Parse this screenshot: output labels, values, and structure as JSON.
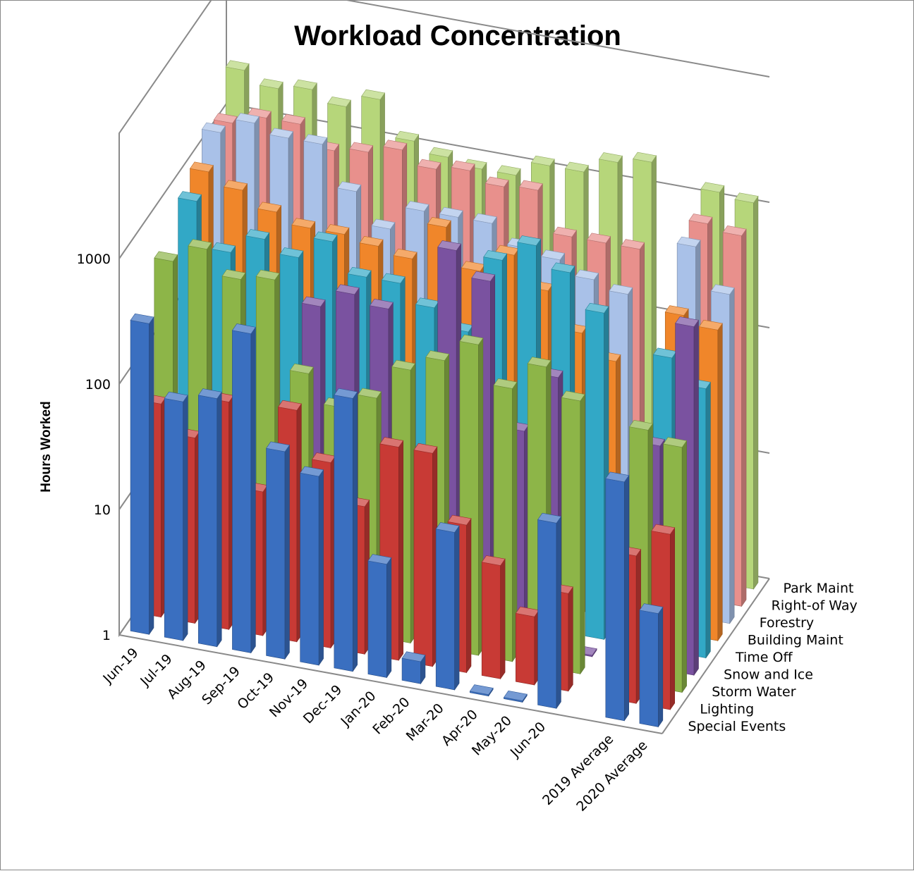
{
  "chart_data": {
    "type": "bar",
    "title": "Workload Concentration",
    "ylabel": "Hours Worked",
    "yscale": "log",
    "ylim": [
      1,
      10000
    ],
    "yticks": [
      "1",
      "10",
      "100",
      "1000"
    ],
    "categories": [
      "Jun-19",
      "Jul-19",
      "Aug-19",
      "Sep-19",
      "Oct-19",
      "Nov-19",
      "Dec-19",
      "Jan-20",
      "Feb-20",
      "Mar-20",
      "Apr-20",
      "May-20",
      "Jun-20",
      "",
      "2019 Average",
      "2020 Average"
    ],
    "series": [
      {
        "name": "Special Events",
        "color": "#3a6fc0",
        "values": [
          300,
          80,
          95,
          350,
          45,
          32,
          150,
          8,
          1.5,
          18,
          1,
          1,
          30,
          null,
          80,
          8
        ]
      },
      {
        "name": "Lighting",
        "color": "#c83a35",
        "values": [
          50,
          30,
          65,
          14,
          70,
          30,
          15,
          50,
          50,
          15,
          8,
          3.5,
          6,
          null,
          15,
          25
        ]
      },
      {
        "name": "Storm Water",
        "color": "#8db548",
        "values": [
          500,
          700,
          450,
          500,
          100,
          60,
          80,
          150,
          200,
          300,
          150,
          250,
          150,
          null,
          110,
          90
        ]
      },
      {
        "name": "Snow and Ice",
        "color": "#7a52a0",
        "values": [
          null,
          null,
          null,
          null,
          250,
          350,
          300,
          null,
          1100,
          700,
          50,
          150,
          1,
          null,
          60,
          600
        ]
      },
      {
        "name": "Time Off",
        "color": "#32a8c6",
        "values": [
          800,
          350,
          500,
          400,
          600,
          350,
          350,
          250,
          180,
          750,
          1100,
          750,
          400,
          null,
          220,
          140
        ]
      },
      {
        "name": "Building Maint",
        "color": "#f0862a",
        "values": [
          1000,
          800,
          600,
          500,
          500,
          450,
          400,
          800,
          400,
          600,
          350,
          180,
          120,
          null,
          350,
          300
        ]
      },
      {
        "name": "Forestry",
        "color": "#a9c1e8",
        "values": [
          1500,
          2000,
          1700,
          1700,
          800,
          450,
          700,
          700,
          700,
          500,
          450,
          350,
          300,
          null,
          900,
          420
        ]
      },
      {
        "name": "Right-of Way",
        "color": "#e8908c",
        "values": [
          1300,
          1600,
          1600,
          1100,
          1200,
          1400,
          1100,
          1200,
          1000,
          1050,
          500,
          500,
          500,
          null,
          1000,
          900
        ]
      },
      {
        "name": "Park Maint",
        "color": "#b6d67a",
        "values": [
          2500,
          2000,
          2200,
          1800,
          2300,
          1200,
          1000,
          900,
          900,
          1200,
          1200,
          1600,
          1800,
          null,
          1300,
          1200
        ]
      }
    ],
    "legend": "right-depth-axis",
    "grid": true
  }
}
